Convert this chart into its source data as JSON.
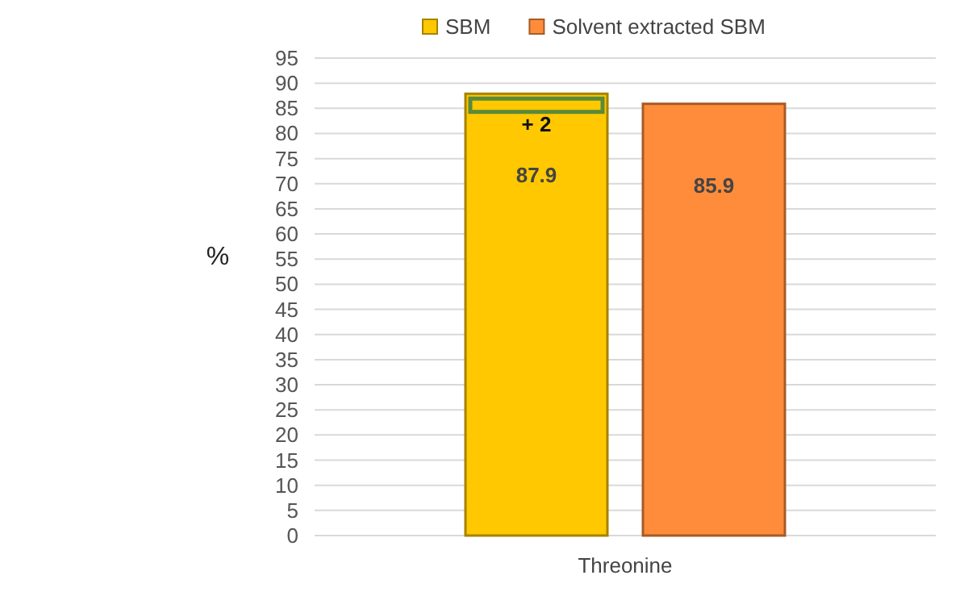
{
  "chart_data": {
    "type": "bar",
    "ylabel": "%",
    "categories": [
      "Threonine"
    ],
    "series": [
      {
        "name": "SBM",
        "color": "#ffc800",
        "values": [
          87.9
        ]
      },
      {
        "name": "Solvent extracted SBM",
        "color": "#ff8c3a",
        "values": [
          85.9
        ]
      }
    ],
    "ylim": [
      0,
      95
    ],
    "yticks": [
      0,
      5,
      10,
      15,
      20,
      25,
      30,
      35,
      40,
      45,
      50,
      55,
      60,
      65,
      70,
      75,
      80,
      85,
      90,
      95
    ],
    "grid": "y",
    "legend": "top",
    "data_labels": true,
    "annotations": [
      "+ 2"
    ]
  }
}
